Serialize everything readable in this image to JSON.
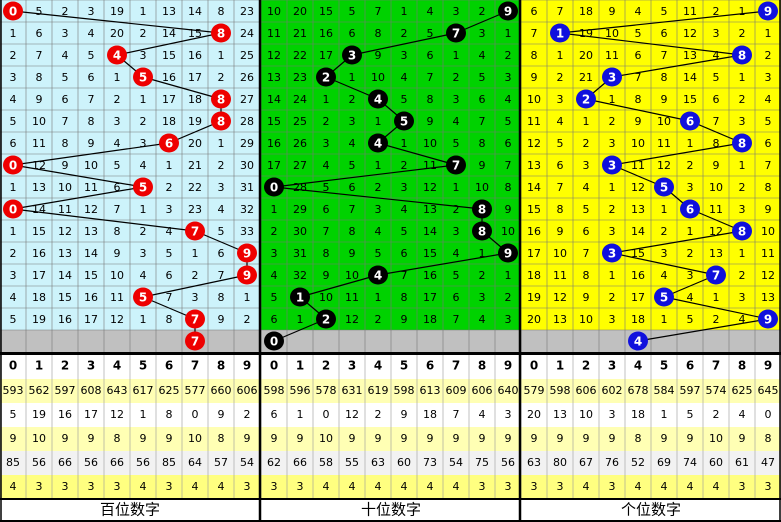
{
  "digits": [
    0,
    1,
    2,
    3,
    4,
    5,
    6,
    7,
    8,
    9
  ],
  "panels": [
    {
      "label": "百位数字",
      "background": "#cdf3fb",
      "ball_color": "#ee0000",
      "draws": [
        0,
        8,
        4,
        5,
        8,
        8,
        6,
        0,
        5,
        0,
        7,
        9,
        9,
        5,
        7
      ],
      "next": 7,
      "rows": [
        [
          null,
          5,
          2,
          3,
          19,
          1,
          13,
          14,
          8,
          23
        ],
        [
          1,
          6,
          3,
          4,
          20,
          2,
          14,
          15,
          null,
          24
        ],
        [
          2,
          7,
          4,
          5,
          null,
          3,
          15,
          16,
          1,
          25
        ],
        [
          3,
          8,
          5,
          6,
          1,
          null,
          16,
          17,
          2,
          26
        ],
        [
          4,
          9,
          6,
          7,
          2,
          1,
          17,
          18,
          null,
          27
        ],
        [
          5,
          10,
          7,
          8,
          3,
          2,
          18,
          19,
          null,
          28
        ],
        [
          6,
          11,
          8,
          9,
          4,
          3,
          null,
          20,
          1,
          29
        ],
        [
          null,
          12,
          9,
          10,
          5,
          4,
          1,
          21,
          2,
          30
        ],
        [
          1,
          13,
          10,
          11,
          6,
          null,
          2,
          22,
          3,
          31
        ],
        [
          null,
          14,
          11,
          12,
          7,
          1,
          3,
          23,
          4,
          32
        ],
        [
          1,
          15,
          12,
          13,
          8,
          2,
          4,
          null,
          5,
          33
        ],
        [
          2,
          16,
          13,
          14,
          9,
          3,
          5,
          1,
          6,
          null
        ],
        [
          3,
          17,
          14,
          15,
          10,
          4,
          6,
          2,
          7,
          null
        ],
        [
          4,
          18,
          15,
          16,
          11,
          null,
          7,
          3,
          8,
          1
        ],
        [
          5,
          19,
          16,
          17,
          12,
          1,
          8,
          null,
          9,
          2
        ]
      ],
      "stats": [
        [
          593,
          562,
          597,
          608,
          643,
          617,
          625,
          577,
          660,
          606
        ],
        [
          5,
          19,
          16,
          17,
          12,
          1,
          8,
          0,
          9,
          2
        ],
        [
          9,
          10,
          9,
          9,
          8,
          9,
          9,
          10,
          8,
          9
        ],
        [
          85,
          56,
          66,
          56,
          66,
          56,
          85,
          64,
          57,
          54
        ],
        [
          4,
          3,
          3,
          3,
          3,
          4,
          3,
          4,
          4,
          3
        ]
      ]
    },
    {
      "label": "十位数字",
      "background": "#00d200",
      "ball_color": "#000000",
      "draws": [
        9,
        7,
        3,
        2,
        4,
        5,
        4,
        7,
        0,
        8,
        8,
        9,
        4,
        1,
        2
      ],
      "next": 0,
      "rows": [
        [
          10,
          20,
          15,
          5,
          7,
          1,
          4,
          3,
          2,
          null
        ],
        [
          11,
          21,
          16,
          6,
          8,
          2,
          5,
          null,
          3,
          1
        ],
        [
          12,
          22,
          17,
          null,
          9,
          3,
          6,
          1,
          4,
          2
        ],
        [
          13,
          23,
          null,
          1,
          10,
          4,
          7,
          2,
          5,
          3
        ],
        [
          14,
          24,
          1,
          2,
          null,
          5,
          8,
          3,
          6,
          4
        ],
        [
          15,
          25,
          2,
          3,
          1,
          null,
          9,
          4,
          7,
          5
        ],
        [
          16,
          26,
          3,
          4,
          null,
          1,
          10,
          5,
          8,
          6
        ],
        [
          17,
          27,
          4,
          5,
          1,
          2,
          11,
          null,
          9,
          7
        ],
        [
          null,
          28,
          5,
          6,
          2,
          3,
          12,
          1,
          10,
          8
        ],
        [
          1,
          29,
          6,
          7,
          3,
          4,
          13,
          2,
          null,
          9
        ],
        [
          2,
          30,
          7,
          8,
          4,
          5,
          14,
          3,
          null,
          10
        ],
        [
          3,
          31,
          8,
          9,
          5,
          6,
          15,
          4,
          1,
          null
        ],
        [
          4,
          32,
          9,
          10,
          null,
          7,
          16,
          5,
          2,
          1
        ],
        [
          5,
          null,
          10,
          11,
          1,
          8,
          17,
          6,
          3,
          2
        ],
        [
          6,
          1,
          null,
          12,
          2,
          9,
          18,
          7,
          4,
          3
        ]
      ],
      "stats": [
        [
          598,
          596,
          578,
          631,
          619,
          598,
          613,
          609,
          606,
          640
        ],
        [
          6,
          1,
          0,
          12,
          2,
          9,
          18,
          7,
          4,
          3
        ],
        [
          9,
          9,
          10,
          9,
          9,
          9,
          9,
          9,
          9,
          9
        ],
        [
          62,
          66,
          58,
          55,
          63,
          60,
          73,
          54,
          75,
          56
        ],
        [
          3,
          3,
          4,
          4,
          4,
          4,
          4,
          4,
          3,
          3
        ]
      ]
    },
    {
      "label": "个位数字",
      "background": "#ffff00",
      "ball_color": "#1010dd",
      "draws": [
        9,
        1,
        8,
        3,
        2,
        6,
        8,
        3,
        5,
        6,
        8,
        3,
        7,
        5,
        9
      ],
      "next": 4,
      "rows": [
        [
          6,
          7,
          18,
          9,
          4,
          5,
          11,
          2,
          1,
          null
        ],
        [
          7,
          null,
          19,
          10,
          5,
          6,
          12,
          3,
          2,
          1
        ],
        [
          8,
          1,
          20,
          11,
          6,
          7,
          13,
          4,
          null,
          2
        ],
        [
          9,
          2,
          21,
          null,
          7,
          8,
          14,
          5,
          1,
          3
        ],
        [
          10,
          3,
          null,
          1,
          8,
          9,
          15,
          6,
          2,
          4
        ],
        [
          11,
          4,
          1,
          2,
          9,
          10,
          null,
          7,
          3,
          5
        ],
        [
          12,
          5,
          2,
          3,
          10,
          11,
          1,
          8,
          null,
          6
        ],
        [
          13,
          6,
          3,
          null,
          11,
          12,
          2,
          9,
          1,
          7
        ],
        [
          14,
          7,
          4,
          1,
          12,
          null,
          3,
          10,
          2,
          8
        ],
        [
          15,
          8,
          5,
          2,
          13,
          1,
          null,
          11,
          3,
          9
        ],
        [
          16,
          9,
          6,
          3,
          14,
          2,
          1,
          12,
          null,
          10
        ],
        [
          17,
          10,
          7,
          null,
          15,
          3,
          2,
          13,
          1,
          11
        ],
        [
          18,
          11,
          8,
          1,
          16,
          4,
          3,
          null,
          2,
          12
        ],
        [
          19,
          12,
          9,
          2,
          17,
          null,
          4,
          1,
          3,
          13
        ],
        [
          20,
          13,
          10,
          3,
          18,
          1,
          5,
          2,
          4,
          null
        ]
      ],
      "stats": [
        [
          579,
          598,
          606,
          602,
          678,
          584,
          597,
          574,
          625,
          645
        ],
        [
          20,
          13,
          10,
          3,
          18,
          1,
          5,
          2,
          4,
          0
        ],
        [
          9,
          9,
          9,
          9,
          8,
          9,
          9,
          10,
          9,
          8
        ],
        [
          63,
          80,
          67,
          76,
          52,
          69,
          74,
          60,
          61,
          47
        ],
        [
          3,
          3,
          4,
          3,
          4,
          4,
          4,
          4,
          3,
          3
        ]
      ]
    }
  ]
}
